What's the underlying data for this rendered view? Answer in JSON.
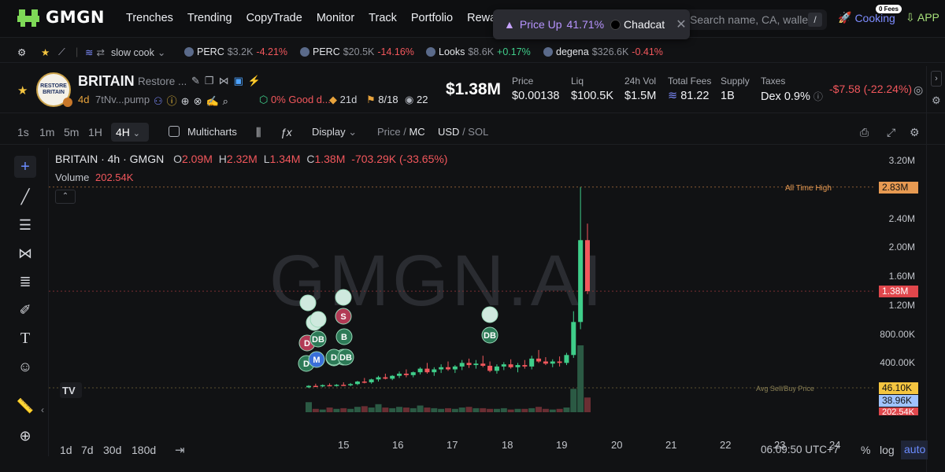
{
  "nav": {
    "logo": "GMGN",
    "links": [
      "Trenches",
      "Trending",
      "CopyTrade",
      "Monitor",
      "Track",
      "Portfolio",
      "Rewards"
    ],
    "search_placeholder": "Search name, CA, wallet",
    "search_shortcut": "/",
    "cooking_label": "Cooking",
    "fees_badge": "0 Fees",
    "app_label": "APP"
  },
  "toast": {
    "label": "Price Up",
    "percent": "41.71%",
    "source": "Chadcat"
  },
  "ticker": {
    "wallet": "slow cook",
    "items": [
      {
        "symbol": "PERC",
        "mc": "$3.2K",
        "change": "-4.21%",
        "dir": "neg"
      },
      {
        "symbol": "PERC",
        "mc": "$20.5K",
        "change": "-14.16%",
        "dir": "neg"
      },
      {
        "symbol": "Looks",
        "mc": "$8.6K",
        "change": "+0.17%",
        "dir": "pos"
      },
      {
        "symbol": "degena",
        "mc": "$326.6K",
        "change": "-0.41%",
        "dir": "neg"
      }
    ]
  },
  "token": {
    "logo_text": "RESTORE BRITAIN",
    "symbol": "BRITAIN",
    "name": "Restore ...",
    "age": "4d",
    "ca": "7tNv...pump",
    "good_label": "0% Good d...",
    "age2": "21d",
    "holders_ratio": "8/18",
    "watchers": "22",
    "market_cap": "$1.38M",
    "change": "-$7.58 (-22.24%)",
    "stats": [
      {
        "key": "Price",
        "value": "$0.00138"
      },
      {
        "key": "Liq",
        "value": "$100.5K"
      },
      {
        "key": "24h Vol",
        "value": "$1.5M"
      },
      {
        "key": "Total Fees",
        "value": "81.22"
      },
      {
        "key": "Supply",
        "value": "1B"
      },
      {
        "key": "Taxes",
        "value": "Dex 0.9%"
      }
    ]
  },
  "chart_toolbar": {
    "timeframes": [
      "1s",
      "1m",
      "5m",
      "1H"
    ],
    "selected_timeframe": "4H",
    "multicharts": "Multicharts",
    "display": "Display",
    "price_mode": "Price",
    "mc_mode": "MC",
    "usd": "USD",
    "sol": "SOL"
  },
  "chart_info": {
    "title": "BRITAIN · 4h · GMGN",
    "o_label": "O",
    "o": "2.09M",
    "h_label": "H",
    "h": "2.32M",
    "l_label": "L",
    "l": "1.34M",
    "c_label": "C",
    "c": "1.38M",
    "change": "-703.29K (-33.65%)",
    "volume_label": "Volume",
    "volume": "202.54K",
    "watermark": "GMGN.AI",
    "ath_label": "All Time High",
    "avg_label": "Avg Sell/Buy Price"
  },
  "chart_data": {
    "type": "candlestick",
    "y_ticks": [
      "3.20M",
      "2.40M",
      "2.00M",
      "1.60M",
      "1.20M",
      "800.00K",
      "400.00K"
    ],
    "x_ticks": [
      "15",
      "16",
      "17",
      "18",
      "19",
      "20",
      "21",
      "22",
      "23",
      "24"
    ],
    "tags": {
      "ath": "2.83M",
      "current": "1.38M",
      "avg_buy": "46.10K",
      "avg_sell": "38.96K",
      "vol": "202.54K"
    },
    "ylim": [
      0,
      3400000
    ],
    "candles": [
      {
        "o": 40000,
        "h": 70000,
        "l": 30000,
        "c": 60000
      },
      {
        "o": 60000,
        "h": 90000,
        "l": 50000,
        "c": 55000
      },
      {
        "o": 55000,
        "h": 80000,
        "l": 40000,
        "c": 70000
      },
      {
        "o": 70000,
        "h": 95000,
        "l": 55000,
        "c": 60000
      },
      {
        "o": 60000,
        "h": 85000,
        "l": 50000,
        "c": 75000
      },
      {
        "o": 75000,
        "h": 110000,
        "l": 60000,
        "c": 70000
      },
      {
        "o": 70000,
        "h": 100000,
        "l": 55000,
        "c": 85000
      },
      {
        "o": 85000,
        "h": 130000,
        "l": 70000,
        "c": 120000
      },
      {
        "o": 120000,
        "h": 170000,
        "l": 95000,
        "c": 110000
      },
      {
        "o": 110000,
        "h": 160000,
        "l": 90000,
        "c": 150000
      },
      {
        "o": 150000,
        "h": 200000,
        "l": 120000,
        "c": 180000
      },
      {
        "o": 180000,
        "h": 230000,
        "l": 150000,
        "c": 160000
      },
      {
        "o": 160000,
        "h": 210000,
        "l": 140000,
        "c": 200000
      },
      {
        "o": 200000,
        "h": 260000,
        "l": 170000,
        "c": 230000
      },
      {
        "o": 230000,
        "h": 290000,
        "l": 180000,
        "c": 210000
      },
      {
        "o": 210000,
        "h": 260000,
        "l": 180000,
        "c": 250000
      },
      {
        "o": 250000,
        "h": 320000,
        "l": 220000,
        "c": 300000
      },
      {
        "o": 300000,
        "h": 380000,
        "l": 230000,
        "c": 250000
      },
      {
        "o": 250000,
        "h": 320000,
        "l": 200000,
        "c": 290000
      },
      {
        "o": 290000,
        "h": 360000,
        "l": 240000,
        "c": 320000
      },
      {
        "o": 320000,
        "h": 400000,
        "l": 270000,
        "c": 290000
      },
      {
        "o": 290000,
        "h": 350000,
        "l": 240000,
        "c": 330000
      },
      {
        "o": 330000,
        "h": 420000,
        "l": 280000,
        "c": 380000
      },
      {
        "o": 380000,
        "h": 440000,
        "l": 310000,
        "c": 350000
      },
      {
        "o": 350000,
        "h": 420000,
        "l": 300000,
        "c": 370000
      },
      {
        "o": 370000,
        "h": 480000,
        "l": 320000,
        "c": 340000
      },
      {
        "o": 340000,
        "h": 400000,
        "l": 250000,
        "c": 270000
      },
      {
        "o": 270000,
        "h": 360000,
        "l": 230000,
        "c": 330000
      },
      {
        "o": 330000,
        "h": 390000,
        "l": 280000,
        "c": 360000
      },
      {
        "o": 360000,
        "h": 430000,
        "l": 300000,
        "c": 320000
      },
      {
        "o": 320000,
        "h": 380000,
        "l": 250000,
        "c": 350000
      },
      {
        "o": 350000,
        "h": 420000,
        "l": 300000,
        "c": 330000
      },
      {
        "o": 330000,
        "h": 480000,
        "l": 290000,
        "c": 440000
      },
      {
        "o": 440000,
        "h": 560000,
        "l": 380000,
        "c": 400000
      },
      {
        "o": 400000,
        "h": 460000,
        "l": 350000,
        "c": 370000
      },
      {
        "o": 370000,
        "h": 430000,
        "l": 320000,
        "c": 400000
      },
      {
        "o": 400000,
        "h": 470000,
        "l": 330000,
        "c": 380000
      },
      {
        "o": 380000,
        "h": 520000,
        "l": 350000,
        "c": 490000
      },
      {
        "o": 490000,
        "h": 1100000,
        "l": 450000,
        "c": 950000
      },
      {
        "o": 950000,
        "h": 2830000,
        "l": 850000,
        "c": 2090000
      },
      {
        "o": 2090000,
        "h": 2320000,
        "l": 1340000,
        "c": 1380000
      }
    ],
    "volumes": [
      0.15,
      0.05,
      0.04,
      0.07,
      0.05,
      0.06,
      0.05,
      0.08,
      0.09,
      0.07,
      0.12,
      0.07,
      0.06,
      0.08,
      0.07,
      0.06,
      0.1,
      0.07,
      0.06,
      0.05,
      0.06,
      0.05,
      0.07,
      0.08,
      0.06,
      0.06,
      0.05,
      0.05,
      0.06,
      0.04,
      0.05,
      0.05,
      0.06,
      0.08,
      0.05,
      0.04,
      0.05,
      0.07,
      0.35,
      1.0,
      0.22
    ]
  },
  "markers": [
    {
      "label": "",
      "kind": "frog"
    },
    {
      "label": "",
      "kind": "frog"
    },
    {
      "label": "",
      "kind": "frog"
    },
    {
      "label": "",
      "kind": "frog"
    },
    {
      "label": "S",
      "kind": "sell"
    },
    {
      "label": "D",
      "kind": "sell"
    },
    {
      "label": "DB",
      "kind": "buy"
    },
    {
      "label": "B",
      "kind": "buy"
    },
    {
      "label": "DB",
      "kind": "buy"
    },
    {
      "label": "B",
      "kind": "buy"
    },
    {
      "label": "D",
      "kind": "buy"
    },
    {
      "label": "M",
      "kind": "blue"
    },
    {
      "label": "D",
      "kind": "buy"
    },
    {
      "label": "DB",
      "kind": "buy"
    },
    {
      "label": "",
      "kind": "frog"
    },
    {
      "label": "DB",
      "kind": "buy"
    }
  ],
  "bottom": {
    "ranges": [
      "1d",
      "7d",
      "30d",
      "180d"
    ],
    "clock": "06:09:50 UTC+7",
    "percent": "%",
    "log": "log",
    "auto": "auto"
  },
  "colors": {
    "up": "#3fce8a",
    "down": "#f2575c",
    "accent": "#7d8cff",
    "ath": "#e79a52"
  }
}
